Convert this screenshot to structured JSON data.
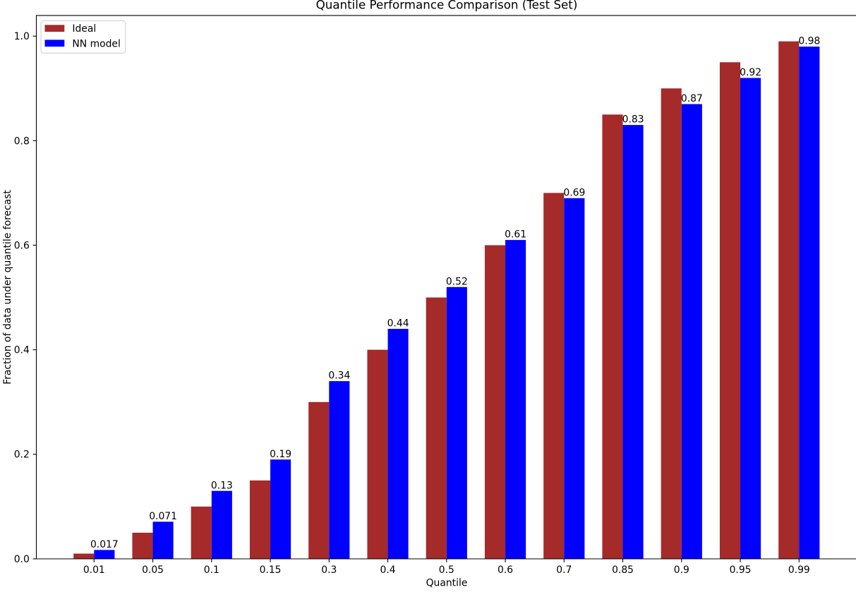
{
  "chart_data": {
    "type": "bar",
    "title": "Quantile Performance Comparison (Test Set)",
    "xlabel": "Quantile",
    "ylabel": "Fraction of data under quantile forecast",
    "categories": [
      "0.01",
      "0.05",
      "0.1",
      "0.15",
      "0.3",
      "0.4",
      "0.5",
      "0.6",
      "0.7",
      "0.85",
      "0.9",
      "0.95",
      "0.99"
    ],
    "series": [
      {
        "name": "Ideal",
        "color": "#A52A2A",
        "values": [
          0.01,
          0.05,
          0.1,
          0.15,
          0.3,
          0.4,
          0.5,
          0.6,
          0.7,
          0.85,
          0.9,
          0.95,
          0.99
        ]
      },
      {
        "name": "NN model",
        "color": "#0000FF",
        "values": [
          0.017,
          0.071,
          0.13,
          0.19,
          0.34,
          0.44,
          0.52,
          0.61,
          0.69,
          0.83,
          0.87,
          0.92,
          0.98
        ]
      }
    ],
    "bar_labels": [
      "0.017",
      "0.071",
      "0.13",
      "0.19",
      "0.34",
      "0.44",
      "0.52",
      "0.61",
      "0.69",
      "0.83",
      "0.87",
      "0.92",
      "0.98"
    ],
    "bar_labels_on_series": "NN model",
    "yticks": [
      "0.0",
      "0.2",
      "0.4",
      "0.6",
      "0.8",
      "1.0"
    ],
    "ylim": [
      0,
      1.0395
    ],
    "legend_position": "upper left",
    "grid": false,
    "axis_color": "#000000",
    "legend_border_color": "#cccccc",
    "background_color": "#ffffff"
  }
}
